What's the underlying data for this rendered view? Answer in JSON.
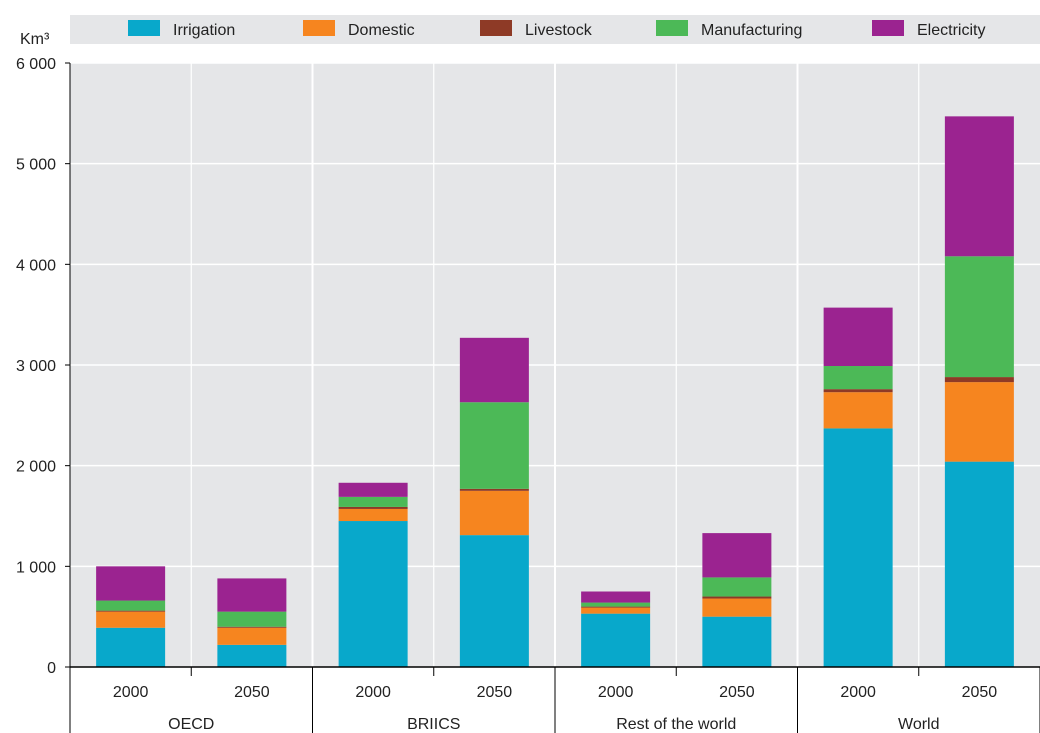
{
  "chart_data": {
    "type": "bar",
    "stacked": true,
    "ylabel": "Km³",
    "ylim": [
      0,
      6000
    ],
    "yticks": [
      0,
      1000,
      2000,
      3000,
      4000,
      5000,
      6000
    ],
    "ytick_labels": [
      "0",
      "1 000",
      "2 000",
      "3 000",
      "4 000",
      "5 000",
      "6 000"
    ],
    "grid": true,
    "legend_position": "top",
    "groups": [
      "OECD",
      "BRIICS",
      "Rest of the world",
      "World"
    ],
    "categories": [
      "2000",
      "2050",
      "2000",
      "2050",
      "2000",
      "2050",
      "2000",
      "2050"
    ],
    "series": [
      {
        "name": "Irrigation",
        "color": "#08a8cb",
        "values": [
          390,
          220,
          1450,
          1310,
          530,
          500,
          2370,
          2040
        ]
      },
      {
        "name": "Domestic",
        "color": "#f6851f",
        "values": [
          160,
          170,
          120,
          440,
          60,
          180,
          360,
          790
        ]
      },
      {
        "name": "Livestock",
        "color": "#8e3a26",
        "values": [
          10,
          10,
          20,
          20,
          10,
          20,
          30,
          50
        ]
      },
      {
        "name": "Manufacturing",
        "color": "#4cb957",
        "values": [
          100,
          150,
          100,
          860,
          40,
          190,
          230,
          1200
        ]
      },
      {
        "name": "Electricity",
        "color": "#9b2390",
        "values": [
          340,
          330,
          140,
          640,
          110,
          440,
          580,
          1390
        ]
      }
    ],
    "colors": {
      "plot_background": "#e5e6e8",
      "legend_background": "#e5e6e8",
      "gridline": "#ffffff"
    }
  }
}
